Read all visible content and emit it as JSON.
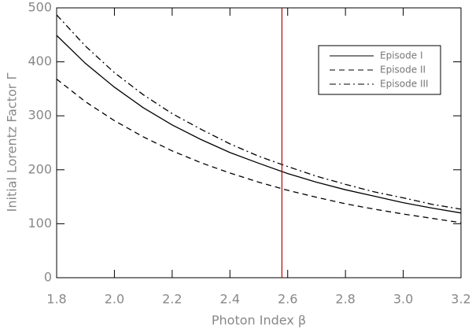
{
  "chart_data": {
    "type": "line",
    "x_label": "Photon Index β",
    "y_label": "Initial Lorentz Factor Γ",
    "x": [
      1.8,
      1.9,
      2.0,
      2.1,
      2.2,
      2.3,
      2.4,
      2.5,
      2.6,
      2.7,
      2.8,
      2.9,
      3.0,
      3.1,
      3.2
    ],
    "series": [
      {
        "name": "Episode I",
        "color": "#000000",
        "linestyle": "solid",
        "values": [
          449,
          397,
          353,
          315,
          283,
          256,
          232,
          212,
          193,
          177,
          163,
          151,
          139,
          129,
          120
        ]
      },
      {
        "name": "Episode II",
        "color": "#000000",
        "linestyle": "dashed",
        "values": [
          368,
          326,
          291,
          261,
          235,
          213,
          194,
          177,
          162,
          149,
          137,
          127,
          118,
          110,
          102
        ]
      },
      {
        "name": "Episode III",
        "color": "#000000",
        "linestyle": "dashdot",
        "values": [
          487,
          429,
          380,
          339,
          304,
          275,
          248,
          225,
          206,
          188,
          173,
          159,
          148,
          136,
          127
        ]
      }
    ],
    "vline": {
      "x": 2.58,
      "color": "#c00000"
    },
    "xlim": [
      1.8,
      3.2
    ],
    "xticks": [
      1.8,
      {
        "value": 2,
        "label": "2.0"
      },
      2.2,
      2.4,
      2.6,
      2.8,
      {
        "value": 3,
        "label": "3.0"
      },
      3.2
    ],
    "ylim": [
      0,
      500
    ],
    "yticks": [
      0,
      100,
      200,
      300,
      400,
      500
    ],
    "legend": "upper right"
  }
}
